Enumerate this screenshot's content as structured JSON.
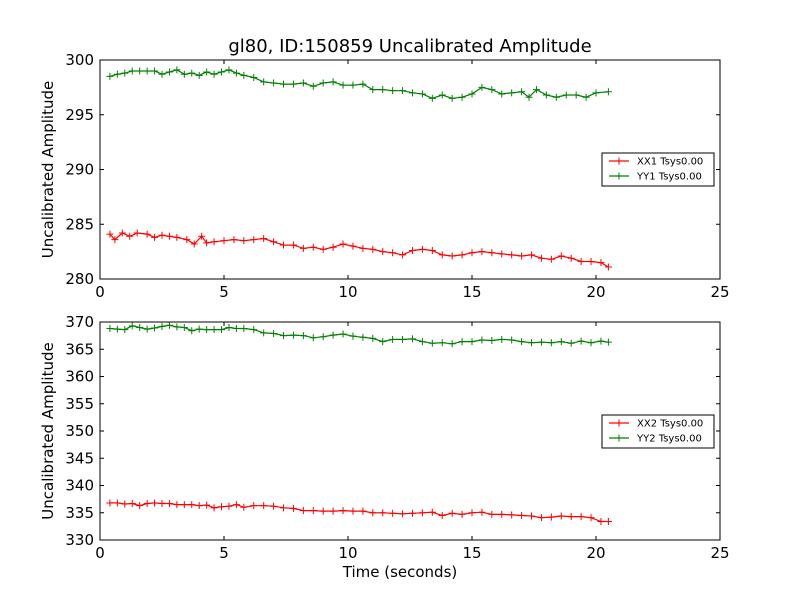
{
  "chart_data": [
    {
      "type": "line",
      "title": "gl80, ID:150859 Uncalibrated Amplitude",
      "xlabel": "",
      "ylabel": "Uncalibrated Amplitude",
      "xlim": [
        0,
        25
      ],
      "ylim": [
        280,
        300
      ],
      "xticks": [
        0,
        5,
        10,
        15,
        20,
        25
      ],
      "yticks": [
        280,
        285,
        290,
        295,
        300
      ],
      "legend_position": "center-right",
      "series": [
        {
          "name": "XX1 Tsys0.00",
          "color": "#ff0000",
          "x": [
            0.4,
            0.6,
            0.9,
            1.2,
            1.5,
            1.9,
            2.2,
            2.5,
            2.8,
            3.1,
            3.5,
            3.8,
            4.1,
            4.3,
            4.6,
            5.0,
            5.4,
            5.8,
            6.2,
            6.6,
            7.0,
            7.4,
            7.8,
            8.2,
            8.6,
            9.0,
            9.4,
            9.8,
            10.2,
            10.6,
            11.0,
            11.4,
            11.8,
            12.2,
            12.6,
            13.0,
            13.4,
            13.8,
            14.2,
            14.6,
            15.0,
            15.4,
            15.8,
            16.2,
            16.6,
            17.0,
            17.4,
            17.8,
            18.2,
            18.6,
            19.0,
            19.4,
            19.8,
            20.2,
            20.5
          ],
          "y": [
            284.1,
            283.6,
            284.2,
            283.9,
            284.2,
            284.1,
            283.8,
            284.0,
            283.9,
            283.8,
            283.6,
            283.2,
            283.9,
            283.3,
            283.4,
            283.5,
            283.6,
            283.5,
            283.6,
            283.7,
            283.4,
            283.1,
            283.1,
            282.8,
            282.9,
            282.7,
            282.9,
            283.2,
            283.0,
            282.8,
            282.7,
            282.5,
            282.4,
            282.2,
            282.6,
            282.7,
            282.6,
            282.2,
            282.1,
            282.2,
            282.4,
            282.5,
            282.4,
            282.3,
            282.2,
            282.1,
            282.2,
            281.9,
            281.8,
            282.1,
            281.9,
            281.6,
            281.6,
            281.5,
            281.1
          ]
        },
        {
          "name": "YY1 Tsys0.00",
          "color": "#008000",
          "x": [
            0.4,
            0.7,
            1.0,
            1.3,
            1.6,
            1.9,
            2.2,
            2.5,
            2.8,
            3.1,
            3.4,
            3.7,
            4.0,
            4.3,
            4.6,
            4.9,
            5.2,
            5.5,
            5.8,
            6.2,
            6.6,
            7.0,
            7.4,
            7.8,
            8.2,
            8.6,
            9.0,
            9.4,
            9.8,
            10.2,
            10.6,
            11.0,
            11.4,
            11.8,
            12.2,
            12.6,
            13.0,
            13.4,
            13.8,
            14.2,
            14.6,
            15.0,
            15.4,
            15.8,
            16.2,
            16.6,
            17.0,
            17.3,
            17.6,
            18.0,
            18.4,
            18.8,
            19.2,
            19.6,
            20.0,
            20.5
          ],
          "y": [
            298.5,
            298.7,
            298.8,
            299.0,
            299.0,
            299.0,
            299.0,
            298.7,
            298.9,
            299.1,
            298.7,
            298.8,
            298.6,
            298.9,
            298.7,
            298.9,
            299.1,
            298.8,
            298.6,
            298.4,
            298.0,
            297.9,
            297.8,
            297.8,
            297.9,
            297.6,
            297.9,
            298.0,
            297.7,
            297.7,
            297.8,
            297.3,
            297.3,
            297.2,
            297.2,
            297.0,
            296.9,
            296.5,
            296.8,
            296.5,
            296.6,
            296.9,
            297.5,
            297.3,
            296.9,
            297.0,
            297.1,
            296.6,
            297.3,
            296.8,
            296.6,
            296.8,
            296.8,
            296.6,
            297.0,
            297.1
          ]
        }
      ]
    },
    {
      "type": "line",
      "title": "",
      "xlabel": "Time (seconds)",
      "ylabel": "Uncalibrated Amplitude",
      "xlim": [
        0,
        25
      ],
      "ylim": [
        330,
        370
      ],
      "xticks": [
        0,
        5,
        10,
        15,
        20,
        25
      ],
      "yticks": [
        330,
        335,
        340,
        345,
        350,
        355,
        360,
        365,
        370
      ],
      "legend_position": "center-right",
      "series": [
        {
          "name": "XX2 Tsys0.00",
          "color": "#ff0000",
          "x": [
            0.4,
            0.7,
            1.0,
            1.3,
            1.6,
            1.9,
            2.2,
            2.5,
            2.8,
            3.1,
            3.4,
            3.7,
            4.0,
            4.3,
            4.6,
            4.9,
            5.2,
            5.5,
            5.8,
            6.2,
            6.6,
            7.0,
            7.4,
            7.8,
            8.2,
            8.6,
            9.0,
            9.4,
            9.8,
            10.2,
            10.6,
            11.0,
            11.4,
            11.8,
            12.2,
            12.6,
            13.0,
            13.4,
            13.8,
            14.2,
            14.6,
            15.0,
            15.4,
            15.8,
            16.2,
            16.6,
            17.0,
            17.4,
            17.8,
            18.2,
            18.6,
            19.0,
            19.4,
            19.8,
            20.2,
            20.5
          ],
          "y": [
            336.8,
            336.8,
            336.6,
            336.7,
            336.3,
            336.7,
            336.8,
            336.7,
            336.7,
            336.5,
            336.5,
            336.5,
            336.3,
            336.4,
            335.9,
            336.1,
            336.2,
            336.5,
            336.0,
            336.3,
            336.3,
            336.2,
            335.9,
            335.8,
            335.4,
            335.4,
            335.3,
            335.3,
            335.4,
            335.3,
            335.3,
            335.0,
            335.0,
            334.9,
            334.8,
            334.9,
            335.0,
            335.1,
            334.5,
            334.9,
            334.7,
            335.0,
            335.1,
            334.7,
            334.7,
            334.6,
            334.5,
            334.4,
            334.1,
            334.2,
            334.4,
            334.3,
            334.3,
            334.1,
            333.4,
            333.4
          ]
        },
        {
          "name": "YY2 Tsys0.00",
          "color": "#008000",
          "x": [
            0.4,
            0.7,
            1.0,
            1.3,
            1.6,
            1.9,
            2.2,
            2.5,
            2.8,
            3.1,
            3.4,
            3.7,
            4.0,
            4.3,
            4.6,
            4.9,
            5.2,
            5.5,
            5.8,
            6.2,
            6.6,
            7.0,
            7.4,
            7.8,
            8.2,
            8.6,
            9.0,
            9.4,
            9.8,
            10.2,
            10.6,
            11.0,
            11.4,
            11.8,
            12.2,
            12.6,
            13.0,
            13.4,
            13.8,
            14.2,
            14.6,
            15.0,
            15.4,
            15.8,
            16.2,
            16.6,
            17.0,
            17.4,
            17.8,
            18.2,
            18.6,
            19.0,
            19.4,
            19.8,
            20.2,
            20.5
          ],
          "y": [
            368.8,
            368.7,
            368.6,
            369.3,
            369.0,
            368.7,
            368.9,
            369.2,
            369.4,
            369.1,
            369.0,
            368.4,
            368.7,
            368.6,
            368.6,
            368.6,
            369.0,
            368.8,
            368.8,
            368.6,
            368.0,
            367.9,
            367.5,
            367.6,
            367.5,
            367.1,
            367.3,
            367.6,
            367.8,
            367.4,
            367.2,
            367.0,
            366.4,
            366.8,
            366.8,
            366.9,
            366.4,
            366.1,
            366.2,
            366.0,
            366.4,
            366.4,
            366.7,
            366.6,
            366.8,
            366.7,
            366.4,
            366.2,
            366.3,
            366.2,
            366.4,
            366.1,
            366.5,
            366.2,
            366.5,
            366.3
          ]
        }
      ]
    }
  ]
}
